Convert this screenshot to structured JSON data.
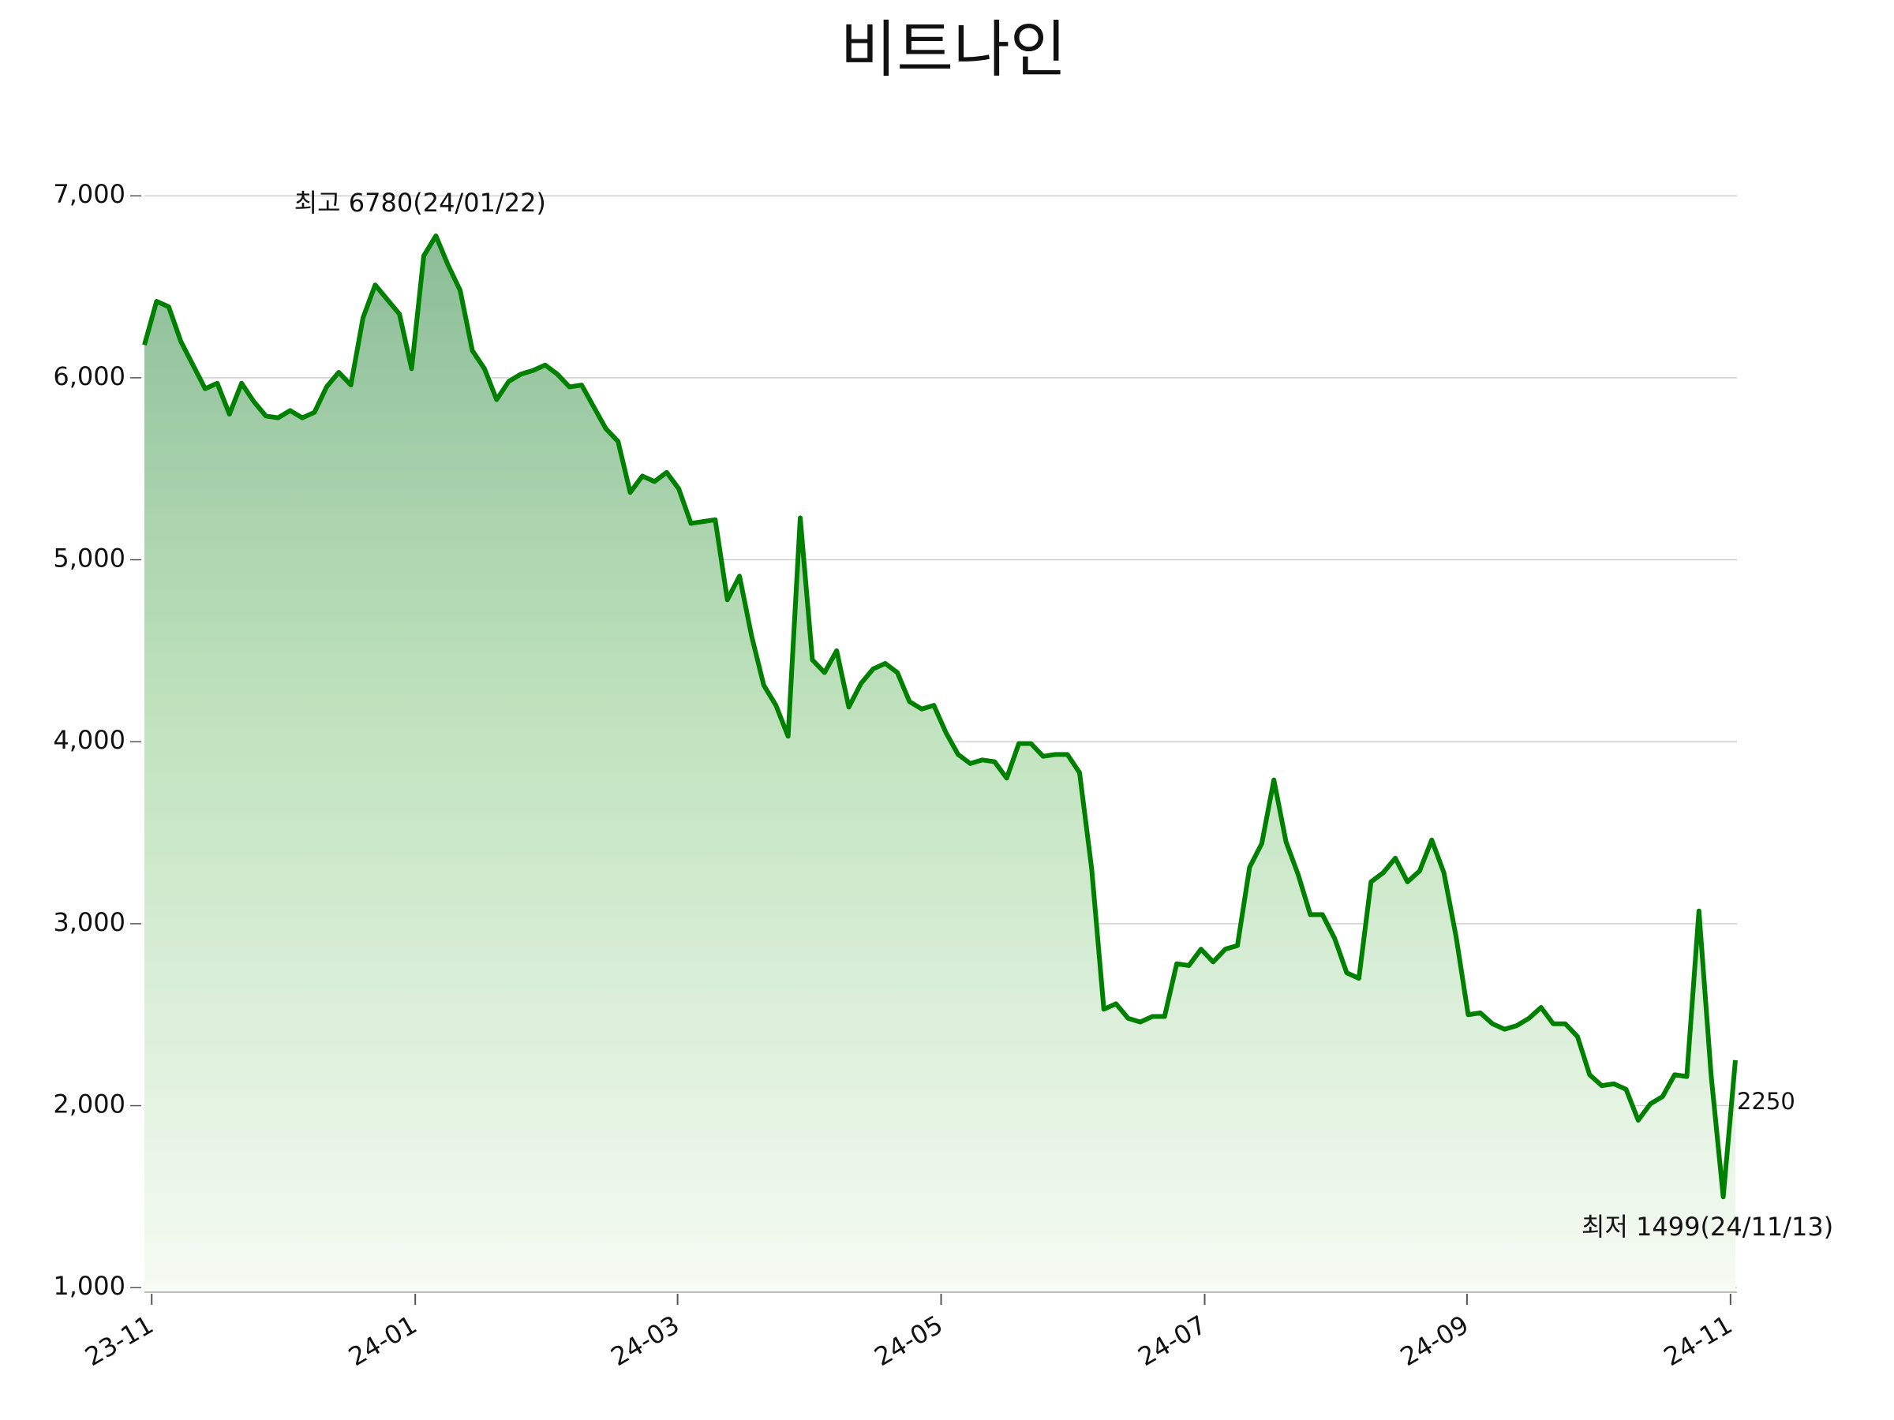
{
  "chart_data": {
    "type": "line",
    "title": "비트나인",
    "values": [
      6180,
      6420,
      6390,
      6200,
      6070,
      5940,
      5970,
      5800,
      5970,
      5870,
      5790,
      5780,
      5820,
      5780,
      5810,
      5950,
      6030,
      5960,
      6330,
      6510,
      6430,
      6350,
      6050,
      6670,
      6780,
      6620,
      6480,
      6150,
      6050,
      5880,
      5980,
      6020,
      6040,
      6070,
      6020,
      5950,
      5960,
      5840,
      5720,
      5650,
      5370,
      5460,
      5430,
      5480,
      5390,
      5200,
      5210,
      5220,
      4780,
      4910,
      4580,
      4310,
      4200,
      4030,
      5230,
      4450,
      4380,
      4500,
      4190,
      4320,
      4400,
      4430,
      4380,
      4220,
      4180,
      4200,
      4050,
      3930,
      3880,
      3900,
      3890,
      3800,
      3990,
      3990,
      3920,
      3930,
      3930,
      3830,
      3300,
      2530,
      2560,
      2480,
      2460,
      2490,
      2490,
      2780,
      2770,
      2860,
      2790,
      2860,
      2880,
      3310,
      3440,
      3790,
      3450,
      3270,
      3050,
      3050,
      2920,
      2730,
      2700,
      3230,
      3280,
      3360,
      3230,
      3290,
      3460,
      3280,
      2930,
      2500,
      2510,
      2450,
      2420,
      2440,
      2480,
      2540,
      2450,
      2450,
      2380,
      2170,
      2110,
      2120,
      2090,
      1920,
      2010,
      2050,
      2170,
      2160,
      3070,
      2170,
      1499,
      2250
    ],
    "color": "#008000",
    "xticks": [
      {
        "value": 0.6,
        "label": "23-11"
      },
      {
        "value": 22.3,
        "label": "24-01"
      },
      {
        "value": 43.9,
        "label": "24-03"
      },
      {
        "value": 65.6,
        "label": "24-05"
      },
      {
        "value": 87.3,
        "label": "24-07"
      },
      {
        "value": 108.9,
        "label": "24-09"
      },
      {
        "value": 130.6,
        "label": "24-11"
      }
    ],
    "ylim": [
      975,
      7300
    ],
    "yticks": [
      {
        "value": 1000,
        "label": "1,000"
      },
      {
        "value": 2000,
        "label": "2,000"
      },
      {
        "value": 3000,
        "label": "3,000"
      },
      {
        "value": 4000,
        "label": "4,000"
      },
      {
        "value": 5000,
        "label": "5,000"
      },
      {
        "value": 6000,
        "label": "6,000"
      },
      {
        "value": 7000,
        "label": "7,000"
      }
    ],
    "grid": true,
    "annotations": {
      "high": {
        "text": "최고 6780(24/01/22)",
        "color": "#ff0000"
      },
      "low": {
        "text": "최저 1499(24/11/13)",
        "color": "#0000ff"
      },
      "last": {
        "text": "2250",
        "color": "#111111"
      }
    }
  }
}
